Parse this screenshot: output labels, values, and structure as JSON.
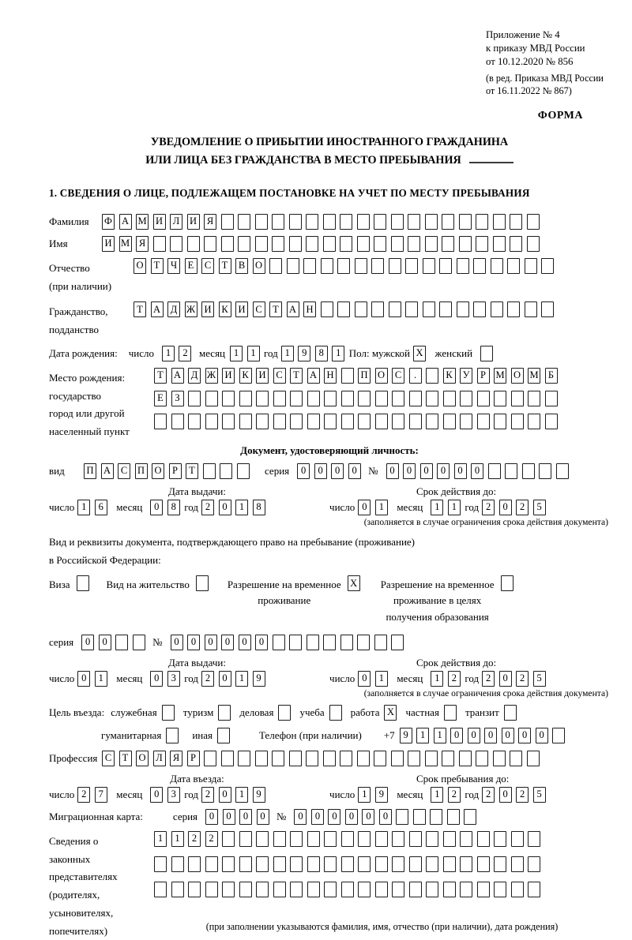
{
  "header": {
    "appendix_lines": [
      "Приложение № 4",
      "к приказу МВД России",
      "от 10.12.2020 № 856"
    ],
    "edition_lines": [
      "(в ред. Приказа МВД России",
      "от 16.11.2022 № 867)"
    ],
    "form_label": "ФОРМА"
  },
  "title": {
    "line1": "УВЕДОМЛЕНИЕ О ПРИБЫТИИ ИНОСТРАННОГО ГРАЖДАНИНА",
    "line2": "ИЛИ ЛИЦА БЕЗ ГРАЖДАНСТВА В МЕСТО ПРЕБЫВАНИЯ"
  },
  "section1": {
    "title": "1. СВЕДЕНИЯ О ЛИЦЕ, ПОДЛЕЖАЩЕМ ПОСТАНОВКЕ НА УЧЕТ ПО МЕСТУ ПРЕБЫВАНИЯ"
  },
  "date_labels": {
    "day": "число",
    "month": "месяц",
    "year": "год"
  },
  "person": {
    "surname": {
      "label": "Фамилия",
      "cells": {
        "text": "ФАМИЛИЯ",
        "count": 26
      }
    },
    "firstname": {
      "label": "Имя",
      "cells": {
        "text": "ИМЯ",
        "count": 26
      }
    },
    "patronymic": {
      "label_lines": [
        "Отчество",
        "(при наличии)"
      ],
      "cells": {
        "text": "ОТЧЕСТВО",
        "count": 25
      }
    },
    "citizenship": {
      "label_lines": [
        "Гражданство,",
        "подданство"
      ],
      "cells": {
        "text": "ТАДЖИКИСТАН",
        "count": 25
      }
    },
    "birthdate": {
      "label": "Дата рождения:",
      "day": {
        "text": "12",
        "count": 2
      },
      "month": {
        "text": "11",
        "count": 2
      },
      "year": {
        "text": "1981",
        "count": 4
      },
      "sex_label": "Пол: мужской",
      "male_box": {
        "text": "X",
        "count": 1
      },
      "female_label": "женский",
      "female_box": {
        "text": "",
        "count": 1
      }
    },
    "birthplace": {
      "label_lines": [
        "Место рождения:",
        "государство",
        "город или другой",
        "населенный пункт"
      ],
      "row1": {
        "text": "ТАДЖИКИСТАН ПОС. КУРМОМБ",
        "count": 24
      },
      "row2": {
        "text": "ЕЗ",
        "count": 24
      },
      "row3": {
        "text": "",
        "count": 24
      }
    }
  },
  "identity_doc": {
    "header": "Документ, удостоверяющий личность:",
    "kind_label": "вид",
    "kind": {
      "text": "ПАСПОРТ",
      "count": 10
    },
    "series_label": "серия",
    "series": {
      "text": "0000",
      "count": 4
    },
    "number_label": "№",
    "number": {
      "text": "000000",
      "count": 11
    },
    "issue_header": "Дата выдачи:",
    "valid_header": "Срок действия до:",
    "issue": {
      "day": {
        "text": "16",
        "count": 2
      },
      "month": {
        "text": "08",
        "count": 2
      },
      "year": {
        "text": "2018",
        "count": 4
      }
    },
    "valid": {
      "day": {
        "text": "01",
        "count": 2
      },
      "month": {
        "text": "11",
        "count": 2
      },
      "year": {
        "text": "2025",
        "count": 4
      }
    },
    "note": "(заполняется в случае ограничения срока действия документа)"
  },
  "residence_doc": {
    "line1": "Вид и реквизиты документа, подтверждающего право на пребывание (проживание)",
    "line2": "в Российской Федерации:",
    "options": [
      {
        "lines": [
          "Виза"
        ],
        "box": {
          "text": "",
          "count": 1
        }
      },
      {
        "lines": [
          "Вид на жительство"
        ],
        "box": {
          "text": "",
          "count": 1
        }
      },
      {
        "lines": [
          "Разрешение на временное",
          "проживание"
        ],
        "box": {
          "text": "X",
          "count": 1
        }
      },
      {
        "lines": [
          "Разрешение на временное",
          "проживание в целях",
          "получения образования"
        ],
        "box": {
          "text": "",
          "count": 1
        }
      }
    ],
    "series_label": "серия",
    "series": {
      "text": "00",
      "count": 4
    },
    "number_label": "№",
    "number": {
      "text": "000000",
      "count": 14
    },
    "issue_header": "Дата выдачи:",
    "valid_header": "Срок действия до:",
    "issue": {
      "day": {
        "text": "01",
        "count": 2
      },
      "month": {
        "text": "03",
        "count": 2
      },
      "year": {
        "text": "2019",
        "count": 4
      }
    },
    "valid": {
      "day": {
        "text": "01",
        "count": 2
      },
      "month": {
        "text": "12",
        "count": 2
      },
      "year": {
        "text": "2025",
        "count": 4
      }
    },
    "note": "(заполняется в случае ограничения срока действия документа)"
  },
  "visit": {
    "purpose_label": "Цель въезда:",
    "purposes_row1": [
      {
        "label": "служебная",
        "box": {
          "text": "",
          "count": 1
        }
      },
      {
        "label": "туризм",
        "box": {
          "text": "",
          "count": 1
        }
      },
      {
        "label": "деловая",
        "box": {
          "text": "",
          "count": 1
        }
      },
      {
        "label": "учеба",
        "box": {
          "text": "",
          "count": 1
        }
      },
      {
        "label": "работа",
        "box": {
          "text": "X",
          "count": 1
        }
      },
      {
        "label": "частная",
        "box": {
          "text": "",
          "count": 1
        }
      },
      {
        "label": "транзит",
        "box": {
          "text": "",
          "count": 1
        }
      }
    ],
    "purposes_row2": [
      {
        "label": "гуманитарная",
        "box": {
          "text": "",
          "count": 1
        }
      },
      {
        "label": "иная",
        "box": {
          "text": "",
          "count": 1
        }
      }
    ],
    "phone_label": "Телефон (при наличии)",
    "phone_prefix": "+7",
    "phone": {
      "text": "911000000",
      "count": 10
    },
    "profession_label": "Профессия",
    "profession": {
      "text": "СТОЛЯР",
      "count": 26
    },
    "entry_header": "Дата въезда:",
    "stay_header": "Срок пребывания до:",
    "entry": {
      "day": {
        "text": "27",
        "count": 2
      },
      "month": {
        "text": "03",
        "count": 2
      },
      "year": {
        "text": "2019",
        "count": 4
      }
    },
    "stay": {
      "day": {
        "text": "19",
        "count": 2
      },
      "month": {
        "text": "12",
        "count": 2
      },
      "year": {
        "text": "2025",
        "count": 4
      }
    }
  },
  "migration_card": {
    "label": "Миграционная карта:",
    "series_label": "серия",
    "series": {
      "text": "0000",
      "count": 4
    },
    "number_label": "№",
    "number": {
      "text": "000000",
      "count": 11
    }
  },
  "representatives": {
    "label_lines": [
      "Сведения о",
      "законных",
      "представителях",
      "(родителях,",
      "усыновителях,",
      "попечителях)"
    ],
    "row1": {
      "text": "1122",
      "count": 23
    },
    "row2": {
      "text": "",
      "count": 23
    },
    "row3": {
      "text": "",
      "count": 23
    },
    "note": "(при заполнении указываются фамилия, имя, отчество (при наличии), дата рождения)"
  }
}
